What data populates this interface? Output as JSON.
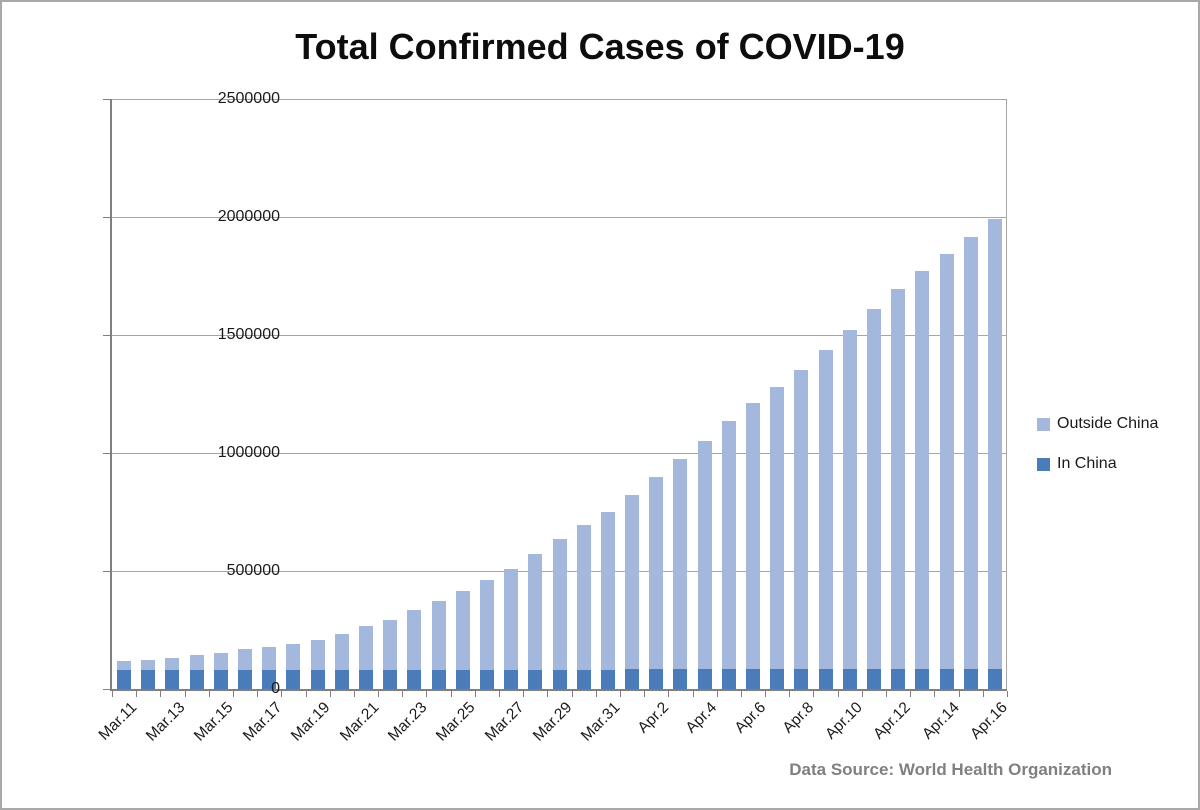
{
  "chart_data": {
    "type": "bar",
    "stacked": true,
    "title": "Total Confirmed Cases of COVID-19",
    "source_note": "Data Source: World Health Organization",
    "xlabel": "",
    "ylabel": "",
    "ylim": [
      0,
      2500000
    ],
    "ytick_values": [
      0,
      500000,
      1000000,
      1500000,
      2000000,
      2500000
    ],
    "ytick_labels": [
      "0",
      "500000",
      "1000000",
      "1500000",
      "2000000",
      "2500000"
    ],
    "grid": true,
    "legend_position": "right",
    "xtick_label_every": 2,
    "categories": [
      "Mar.11",
      "Mar.12",
      "Mar.13",
      "Mar.14",
      "Mar.15",
      "Mar.16",
      "Mar.17",
      "Mar.18",
      "Mar.19",
      "Mar.20",
      "Mar.21",
      "Mar.22",
      "Mar.23",
      "Mar.24",
      "Mar.25",
      "Mar.26",
      "Mar.27",
      "Mar.28",
      "Mar.29",
      "Mar.30",
      "Mar.31",
      "Apr.1",
      "Apr.2",
      "Apr.3",
      "Apr.4",
      "Apr.5",
      "Apr.6",
      "Apr.7",
      "Apr.8",
      "Apr.9",
      "Apr.10",
      "Apr.11",
      "Apr.12",
      "Apr.13",
      "Apr.14",
      "Apr.15",
      "Apr.16"
    ],
    "series": [
      {
        "name": "In China",
        "color": "#4a7cba",
        "values": [
          80955,
          80981,
          80991,
          81021,
          81048,
          81077,
          81116,
          81174,
          81300,
          81416,
          81499,
          81601,
          81747,
          81848,
          81961,
          82078,
          82230,
          82356,
          82447,
          82545,
          82631,
          82724,
          82802,
          82875,
          82930,
          83005,
          83071,
          83157,
          83249,
          83305,
          83369,
          83401,
          83482,
          83597,
          83696,
          83797,
          83403
        ]
      },
      {
        "name": "Outside China",
        "color": "#a3b8dc",
        "values": [
          37371,
          44067,
          51767,
          61518,
          72469,
          86438,
          97996,
          109953,
          128539,
          152657,
          184574,
          210541,
          251183,
          290909,
          331506,
          380606,
          426934,
          489322,
          552388,
          610679,
          668259,
          740902,
          813648,
          889765,
          968705,
          1050753,
          1127885,
          1196565,
          1270112,
          1352893,
          1437883,
          1527508,
          1613106,
          1689487,
          1761167,
          1831119,
          1908159
        ]
      }
    ],
    "legend": [
      {
        "label": "Outside China",
        "color": "#a3b8dc"
      },
      {
        "label": "In China",
        "color": "#4a7cba"
      }
    ]
  }
}
